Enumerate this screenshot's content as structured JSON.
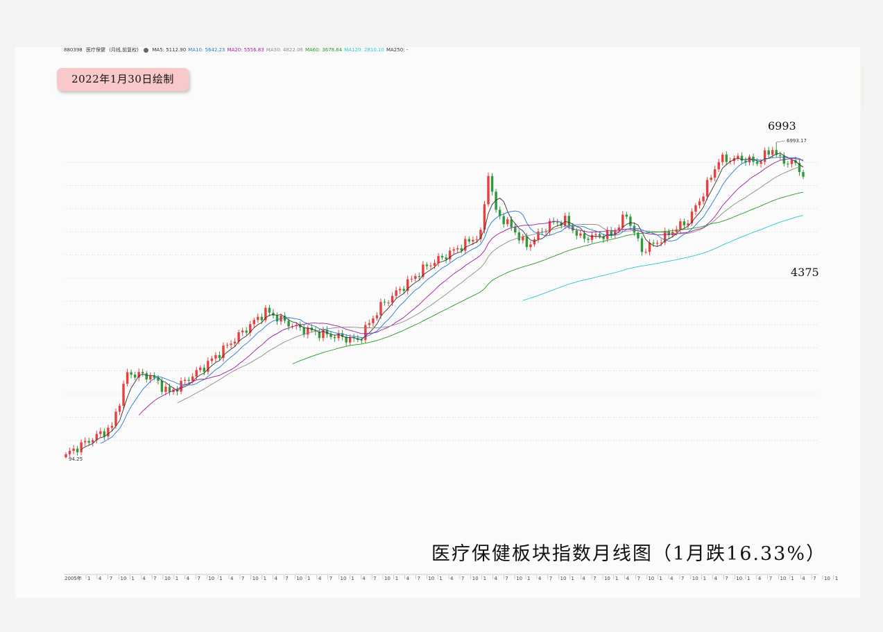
{
  "header": {
    "code": "880398",
    "name": "医疗保健",
    "mode": "(月线,前复权)",
    "indicators": [
      {
        "label": "MA5: 5112.90",
        "color": "#333333"
      },
      {
        "label": "MA10: 5642.23",
        "color": "#1f77d0"
      },
      {
        "label": "MA20: 5556.83",
        "color": "#a0179f"
      },
      {
        "label": "MA30: 4822.06",
        "color": "#8a8a8a"
      },
      {
        "label": "MA60: 3678.64",
        "color": "#1f9a1f"
      },
      {
        "label": "MA120: 2810.10",
        "color": "#22c8d8"
      },
      {
        "label": "MA250: -",
        "color": "#333333"
      }
    ]
  },
  "date_badge": "2022年1月30日绘制",
  "big_title": "医疗保健板块指数月线图（1月跌16.33%）",
  "annotations": {
    "peak": "6993",
    "peak_detail": "6993.17",
    "last": "4375",
    "low_detail": "94.25"
  },
  "colors": {
    "up": "#e8403f",
    "down": "#2e9a3a",
    "grid": "#d9d9d9"
  },
  "chart_data": {
    "type": "candlestick",
    "title": "医疗保健板块指数月线图（1月跌16.33%）",
    "timeframe": "monthly",
    "x_start_label": "2005年",
    "x_tick_labels": [
      "2005年",
      "1",
      "4",
      "7",
      "10",
      "1",
      "4",
      "7",
      "10",
      "1",
      "4",
      "7",
      "10",
      "1",
      "4",
      "7",
      "10",
      "1",
      "4",
      "7",
      "10",
      "1",
      "4",
      "7",
      "10",
      "1",
      "4",
      "7",
      "10",
      "1",
      "4",
      "7",
      "10",
      "1",
      "4",
      "7",
      "10",
      "1",
      "4",
      "7",
      "10",
      "1",
      "4",
      "7",
      "10",
      "1",
      "4",
      "7",
      "10",
      "1",
      "4",
      "7",
      "10",
      "1",
      "4",
      "7",
      "10",
      "1",
      "4",
      "7",
      "10",
      "1",
      "4",
      "7",
      "10",
      "1",
      "4",
      "7",
      "10",
      "1"
    ],
    "ylim": [
      0,
      7500
    ],
    "scale": "log",
    "grid": true,
    "highest": 6993.17,
    "lowest": 94.25,
    "last_close": 4375,
    "last_month_change": "-16.33%",
    "anchors": [
      {
        "x": 0,
        "p": 100
      },
      {
        "x": 12,
        "p": 145
      },
      {
        "x": 16,
        "p": 300
      },
      {
        "x": 22,
        "p": 290
      },
      {
        "x": 27,
        "p": 230
      },
      {
        "x": 36,
        "p": 330
      },
      {
        "x": 52,
        "p": 700
      },
      {
        "x": 60,
        "p": 560
      },
      {
        "x": 66,
        "p": 520
      },
      {
        "x": 76,
        "p": 470
      },
      {
        "x": 82,
        "p": 750
      },
      {
        "x": 94,
        "p": 1300
      },
      {
        "x": 99,
        "p": 1500
      },
      {
        "x": 108,
        "p": 2000
      },
      {
        "x": 110,
        "p": 4600
      },
      {
        "x": 112,
        "p": 2700
      },
      {
        "x": 116,
        "p": 2200
      },
      {
        "x": 120,
        "p": 1700
      },
      {
        "x": 126,
        "p": 2300
      },
      {
        "x": 130,
        "p": 2400
      },
      {
        "x": 134,
        "p": 1900
      },
      {
        "x": 142,
        "p": 2000
      },
      {
        "x": 146,
        "p": 2600
      },
      {
        "x": 150,
        "p": 1600
      },
      {
        "x": 154,
        "p": 1800
      },
      {
        "x": 158,
        "p": 2100
      },
      {
        "x": 162,
        "p": 2400
      },
      {
        "x": 166,
        "p": 3500
      },
      {
        "x": 170,
        "p": 5500
      },
      {
        "x": 176,
        "p": 5600
      },
      {
        "x": 180,
        "p": 5300
      },
      {
        "x": 184,
        "p": 6400
      },
      {
        "x": 186,
        "p": 5500
      },
      {
        "x": 190,
        "p": 5200
      },
      {
        "x": 192,
        "p": 4375
      }
    ],
    "series": [
      {
        "name": "MA5",
        "value_last": 5112.9
      },
      {
        "name": "MA10",
        "value_last": 5642.23
      },
      {
        "name": "MA20",
        "value_last": 5556.83
      },
      {
        "name": "MA30",
        "value_last": 4822.06
      },
      {
        "name": "MA60",
        "value_last": 3678.64
      },
      {
        "name": "MA120",
        "value_last": 2810.1
      },
      {
        "name": "MA250",
        "value_last": null
      }
    ]
  }
}
